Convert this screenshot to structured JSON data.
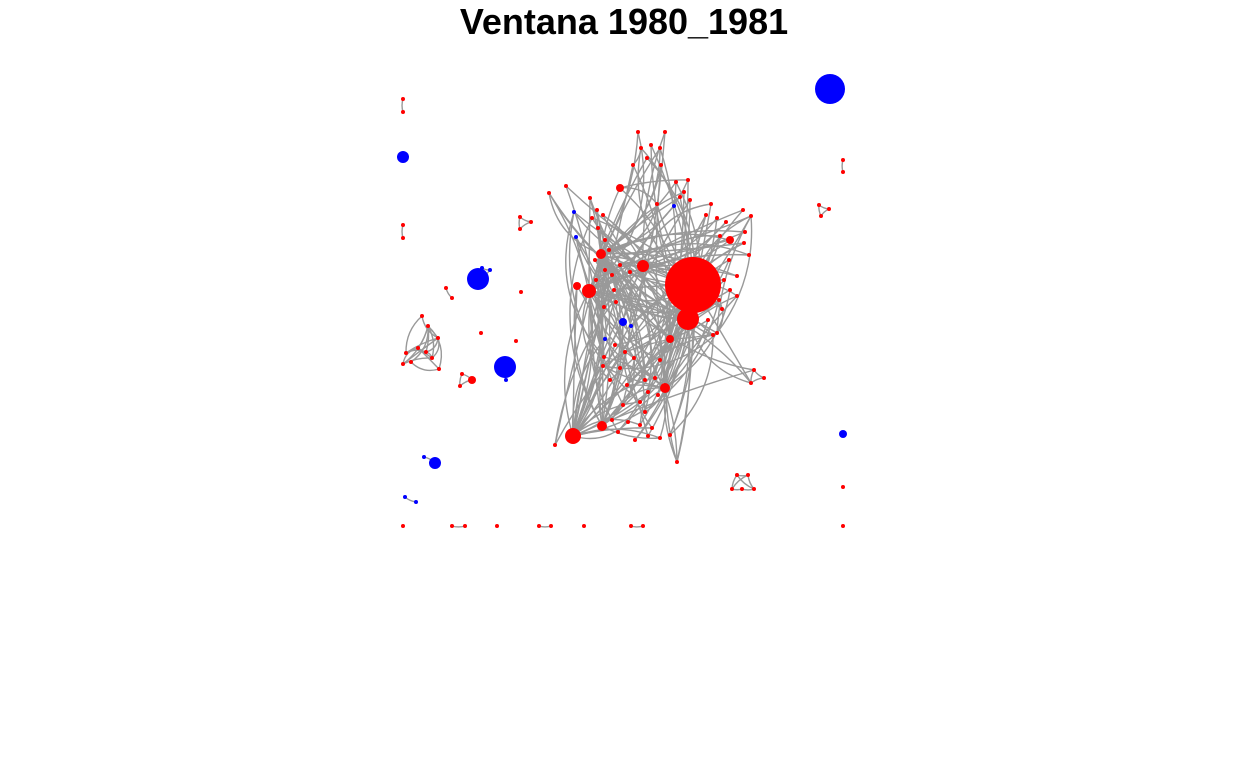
{
  "title": "Ventana 1980_1981",
  "colors": {
    "edge": "#999999",
    "node_red": "#ff0000",
    "node_blue": "#0000ff",
    "background": "#ffffff"
  }
}
